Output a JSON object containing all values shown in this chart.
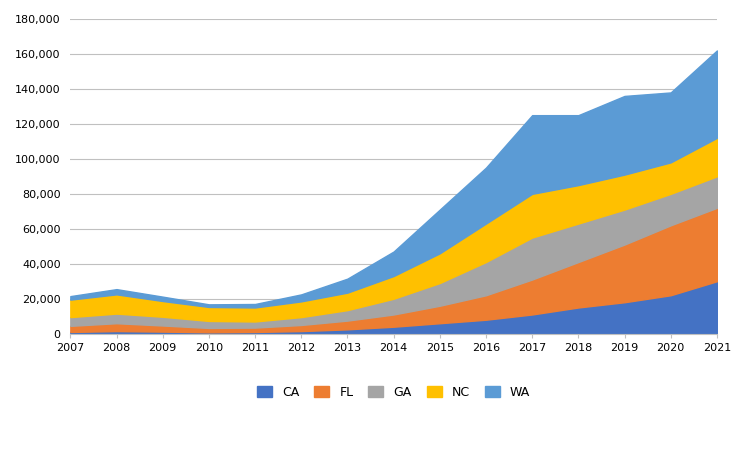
{
  "years": [
    2007,
    2008,
    2009,
    2010,
    2011,
    2012,
    2013,
    2014,
    2015,
    2016,
    2017,
    2018,
    2019,
    2020,
    2021
  ],
  "CA": [
    1000,
    1500,
    1200,
    800,
    1000,
    1500,
    2500,
    4000,
    6000,
    8000,
    11000,
    15000,
    18000,
    22000,
    30000
  ],
  "FL": [
    3500,
    4500,
    3500,
    2500,
    2500,
    3500,
    5000,
    7000,
    10000,
    14000,
    20000,
    26000,
    33000,
    40000,
    42000
  ],
  "GA": [
    5000,
    5500,
    5000,
    4000,
    3500,
    4500,
    6000,
    9000,
    13000,
    19000,
    24000,
    22000,
    20000,
    18000,
    18000
  ],
  "NC": [
    10000,
    11000,
    9000,
    8000,
    8000,
    9000,
    10000,
    13000,
    17000,
    22000,
    25000,
    22000,
    20000,
    18000,
    22000
  ],
  "WA": [
    2000,
    3000,
    2500,
    1500,
    2000,
    4000,
    8000,
    14000,
    25000,
    32000,
    45000,
    40000,
    45000,
    40000,
    50000
  ],
  "colors": {
    "CA": "#4472C4",
    "FL": "#ED7D31",
    "GA": "#A5A5A5",
    "NC": "#FFC000",
    "WA": "#5B9BD5"
  },
  "ylim": [
    0,
    180000
  ],
  "yticks": [
    0,
    20000,
    40000,
    60000,
    80000,
    100000,
    120000,
    140000,
    160000,
    180000
  ],
  "background_color": "#FFFFFF",
  "grid_color": "#C0C0C0"
}
